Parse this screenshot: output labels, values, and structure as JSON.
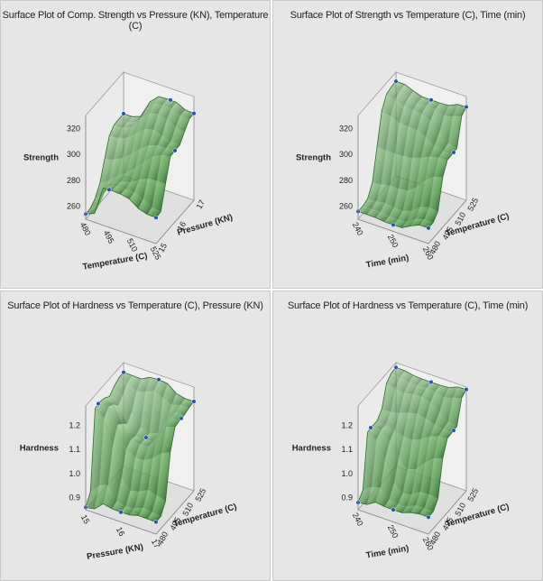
{
  "chart_data": [
    {
      "type": "surface",
      "title": "Surface Plot of Comp. Strength vs Pressure (KN), Temperature (C)",
      "xlabel": "Temperature (C)",
      "ylabel": "Pressure (KN)",
      "zlabel": "Strength",
      "x_ticks": [
        "480",
        "495",
        "510",
        "525"
      ],
      "y_ticks": [
        "15",
        "16",
        "17"
      ],
      "z_ticks": [
        "260",
        "280",
        "300",
        "320"
      ],
      "xlim": [
        480,
        525
      ],
      "ylim": [
        15,
        17
      ],
      "zlim": [
        250,
        330
      ],
      "colors": {
        "surface_light": "#a4d89a",
        "surface_dark": "#1f4a1f",
        "points": "#2554a8",
        "edge": "#2f6a2f"
      },
      "points": [
        {
          "x": 480,
          "y": 15,
          "z": 254
        },
        {
          "x": 495,
          "y": 15,
          "z": 279
        },
        {
          "x": 525,
          "y": 15,
          "z": 270
        },
        {
          "x": 480,
          "y": 17,
          "z": 298
        },
        {
          "x": 510,
          "y": 17,
          "z": 321
        },
        {
          "x": 525,
          "y": 17,
          "z": 317
        },
        {
          "x": 525,
          "y": 16,
          "z": 305
        }
      ]
    },
    {
      "type": "surface",
      "title": "Surface Plot of Strength vs Temperature (C), Time (min)",
      "xlabel": "Time (min)",
      "ylabel": "Temperature (C)",
      "zlabel": "Strength",
      "x_ticks": [
        "240",
        "250",
        "260"
      ],
      "y_ticks": [
        "480",
        "495",
        "510",
        "525"
      ],
      "z_ticks": [
        "260",
        "280",
        "300",
        "320"
      ],
      "xlim": [
        240,
        260
      ],
      "ylim": [
        480,
        525
      ],
      "zlim": [
        250,
        330
      ],
      "colors": {
        "surface_light": "#9fd39a",
        "surface_dark": "#1f4a1f",
        "points": "#2554a8",
        "edge": "#2f6a2f"
      },
      "points": [
        {
          "x": 240,
          "y": 480,
          "z": 256
        },
        {
          "x": 250,
          "y": 480,
          "z": 255
        },
        {
          "x": 260,
          "y": 480,
          "z": 262
        },
        {
          "x": 240,
          "y": 525,
          "z": 323
        },
        {
          "x": 250,
          "y": 525,
          "z": 318
        },
        {
          "x": 260,
          "y": 525,
          "z": 322
        },
        {
          "x": 260,
          "y": 510,
          "z": 298
        }
      ]
    },
    {
      "type": "surface",
      "title": "Surface Plot of Hardness vs Temperature (C), Pressure (KN)",
      "xlabel": "Pressure (KN)",
      "ylabel": "Temperature (C)",
      "zlabel": "Hardness",
      "x_ticks": [
        "15",
        "16",
        "17"
      ],
      "y_ticks": [
        "480",
        "495",
        "510",
        "525"
      ],
      "z_ticks": [
        "0.9",
        "1.0",
        "1.1",
        "1.2"
      ],
      "xlim": [
        15,
        17
      ],
      "ylim": [
        480,
        525
      ],
      "zlim": [
        0.85,
        1.28
      ],
      "colors": {
        "surface_light": "#a6d79c",
        "surface_dark": "#204c20",
        "points": "#2554a8",
        "edge": "#2f6a2f"
      },
      "points": [
        {
          "x": 15,
          "y": 480,
          "z": 0.86
        },
        {
          "x": 16,
          "y": 480,
          "z": 0.89
        },
        {
          "x": 17,
          "y": 480,
          "z": 0.9
        },
        {
          "x": 15,
          "y": 525,
          "z": 1.24
        },
        {
          "x": 16,
          "y": 525,
          "z": 1.26
        },
        {
          "x": 17,
          "y": 525,
          "z": 1.22
        },
        {
          "x": 15,
          "y": 495,
          "z": 1.23
        },
        {
          "x": 16,
          "y": 510,
          "z": 1.08
        },
        {
          "x": 17,
          "y": 510,
          "z": 1.21
        }
      ]
    },
    {
      "type": "surface",
      "title": "Surface Plot of Hardness vs Temperature (C), Time (min)",
      "xlabel": "Time (min)",
      "ylabel": "Temperature (C)",
      "zlabel": "Hardness",
      "x_ticks": [
        "240",
        "250",
        "260"
      ],
      "y_ticks": [
        "480",
        "495",
        "510",
        "525"
      ],
      "z_ticks": [
        "0.9",
        "1.0",
        "1.1",
        "1.2"
      ],
      "xlim": [
        240,
        260
      ],
      "ylim": [
        480,
        525
      ],
      "zlim": [
        0.85,
        1.28
      ],
      "colors": {
        "surface_light": "#9dd098",
        "surface_dark": "#1d461d",
        "points": "#2554a8",
        "edge": "#2f6a2f"
      },
      "points": [
        {
          "x": 240,
          "y": 480,
          "z": 0.88
        },
        {
          "x": 250,
          "y": 480,
          "z": 0.9
        },
        {
          "x": 260,
          "y": 480,
          "z": 0.92
        },
        {
          "x": 240,
          "y": 525,
          "z": 1.26
        },
        {
          "x": 250,
          "y": 525,
          "z": 1.25
        },
        {
          "x": 260,
          "y": 525,
          "z": 1.27
        },
        {
          "x": 240,
          "y": 495,
          "z": 1.13
        },
        {
          "x": 260,
          "y": 510,
          "z": 1.16
        }
      ]
    }
  ]
}
